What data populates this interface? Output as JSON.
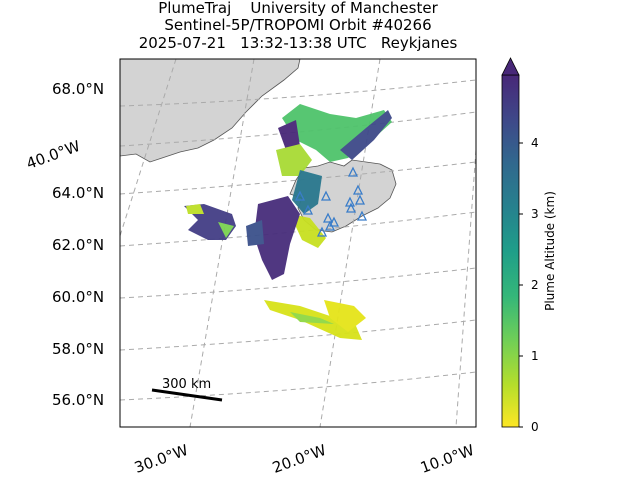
{
  "title": {
    "line1": "PlumeTraj    University of Manchester",
    "line2": "Sentinel-5P/TROPOMI Orbit #40266",
    "line3": "2025-07-21   13:32-13:38 UTC   Reykjanes"
  },
  "map": {
    "lat_labels": [
      "68.0°N",
      "64.0°N",
      "62.0°N",
      "60.0°N",
      "58.0°N",
      "56.0°N"
    ],
    "lon_labels": [
      "40.0°W",
      "30.0°W",
      "20.0°W",
      "10.0°W"
    ],
    "scale_bar_label": "300 km",
    "land_color": "#d3d3d3",
    "grid_style": "dashed gray",
    "volcano_marker": "blue-outlined triangle"
  },
  "colorbar": {
    "label": "Plume Altitude (km)",
    "ticks": [
      "0",
      "1",
      "2",
      "3",
      "4"
    ],
    "range": [
      0,
      5
    ],
    "colormap": "viridis reversed",
    "extend": "max"
  }
}
